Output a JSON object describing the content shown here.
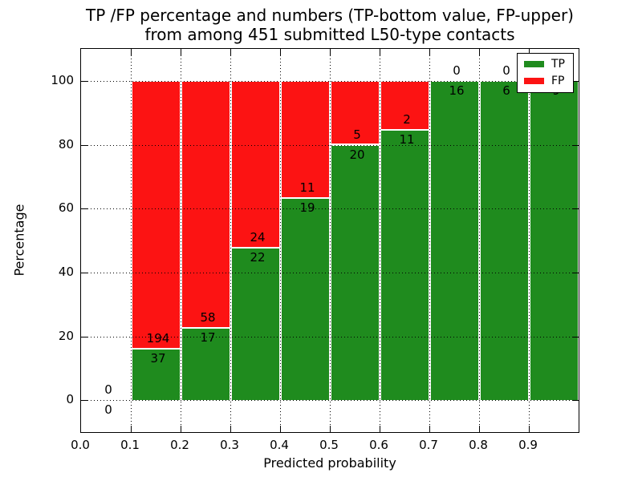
{
  "figure": {
    "title_line1": "TP /FP percentage and numbers (TP-bottom value, FP-upper)",
    "title_line2": "from among 451 submitted L50-type contacts"
  },
  "axes": {
    "xlabel": "Predicted probability",
    "ylabel": "Percentage",
    "x_tick_labels": [
      "0.0",
      "0.1",
      "0.2",
      "0.3",
      "0.4",
      "0.5",
      "0.6",
      "0.7",
      "0.8",
      "0.9"
    ],
    "x_tick_values": [
      0.0,
      0.1,
      0.2,
      0.3,
      0.4,
      0.5,
      0.6,
      0.7,
      0.8,
      0.9
    ],
    "y_tick_labels": [
      "0",
      "20",
      "40",
      "60",
      "80",
      "100"
    ],
    "y_tick_values": [
      0,
      20,
      40,
      60,
      80,
      100
    ],
    "grid_x_values": [
      0.1,
      0.2,
      0.3,
      0.4,
      0.5,
      0.6,
      0.7,
      0.8,
      0.9
    ],
    "grid_y_values": [
      0,
      20,
      40,
      60,
      80,
      100
    ]
  },
  "legend": {
    "items": [
      {
        "label": "TP",
        "color": "#1f8b1e"
      },
      {
        "label": "FP",
        "color": "#fc1313"
      }
    ]
  },
  "chart_data": {
    "type": "bar",
    "stacked": true,
    "title": "TP /FP percentage and numbers (TP-bottom value, FP-upper) from among 451 submitted L50-type contacts",
    "xlabel": "Predicted probability",
    "ylabel": "Percentage",
    "xlim": [
      0.0,
      1.0
    ],
    "ylim": [
      -10,
      110
    ],
    "grid": true,
    "legend_position": "upper right",
    "total_contacts": 451,
    "bin_edges": [
      0.0,
      0.1,
      0.2,
      0.3,
      0.4,
      0.5,
      0.6,
      0.7,
      0.8,
      0.9,
      1.0
    ],
    "series": [
      {
        "name": "TP",
        "color": "#1f8b1e",
        "counts": [
          0,
          37,
          17,
          22,
          19,
          20,
          11,
          16,
          6,
          9
        ],
        "pct": [
          0,
          16.0,
          22.7,
          47.8,
          63.3,
          80.0,
          84.6,
          100,
          100,
          100
        ]
      },
      {
        "name": "FP",
        "color": "#fc1313",
        "counts": [
          0,
          194,
          58,
          24,
          11,
          5,
          2,
          0,
          0,
          0
        ],
        "pct": [
          0,
          84.0,
          77.3,
          52.2,
          36.7,
          20.0,
          15.4,
          0,
          0,
          0
        ]
      }
    ]
  }
}
